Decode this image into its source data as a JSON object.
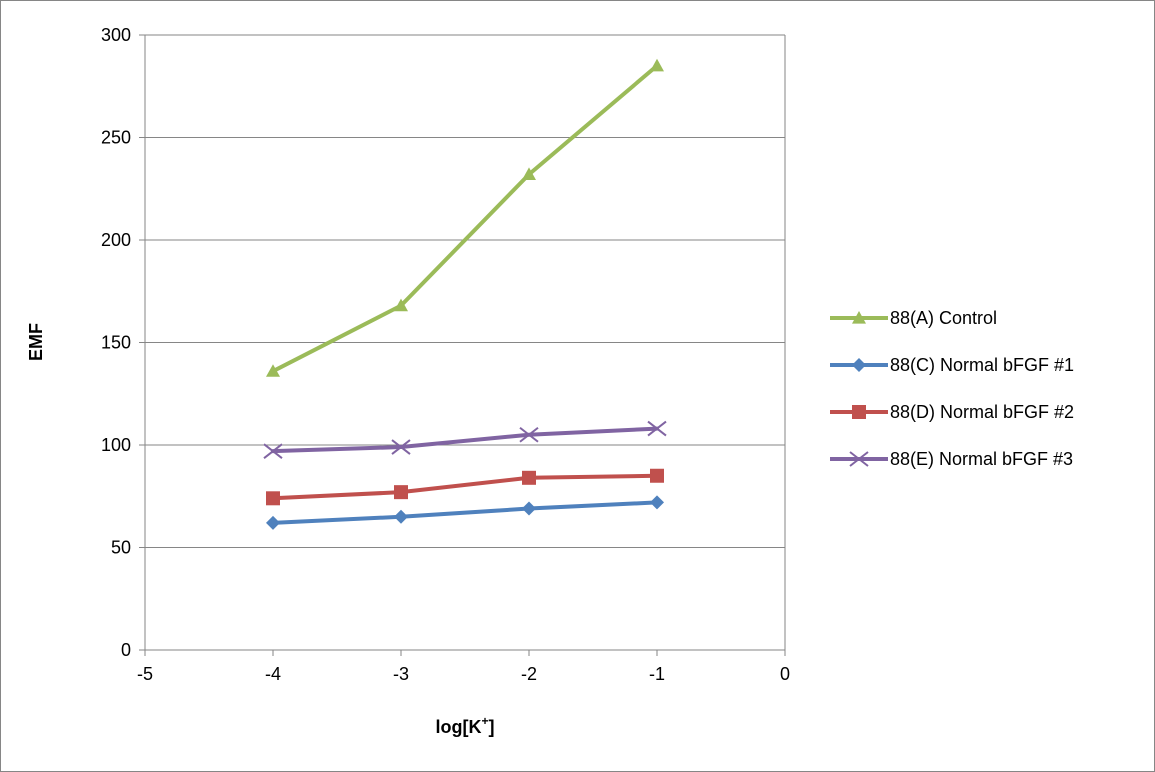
{
  "chart_data": {
    "type": "line",
    "title": "",
    "xlabel": "log[K",
    "xlabel_sup": "+",
    "xlabel_end": "]",
    "ylabel": "EMF",
    "xlim": [
      -5,
      0
    ],
    "ylim": [
      0,
      300
    ],
    "x_ticks": [
      -5,
      -4,
      -3,
      -2,
      -1,
      0
    ],
    "y_ticks": [
      0,
      50,
      100,
      150,
      200,
      250,
      300
    ],
    "grid": "horizontal",
    "legend_position": "right",
    "series": [
      {
        "name": "88(A) Control",
        "color": "#9bbb59",
        "marker": "triangle",
        "x": [
          -4,
          -3,
          -2,
          -1
        ],
        "y": [
          136,
          168,
          232,
          285
        ]
      },
      {
        "name": "88(C) Normal bFGF #1",
        "color": "#4f81bd",
        "marker": "diamond",
        "x": [
          -4,
          -3,
          -2,
          -1
        ],
        "y": [
          62,
          65,
          69,
          72
        ]
      },
      {
        "name": "88(D) Normal bFGF #2",
        "color": "#c0504d",
        "marker": "square",
        "x": [
          -4,
          -3,
          -2,
          -1
        ],
        "y": [
          74,
          77,
          84,
          85
        ]
      },
      {
        "name": "88(E) Normal bFGF #3",
        "color": "#8064a2",
        "marker": "x",
        "x": [
          -4,
          -3,
          -2,
          -1
        ],
        "y": [
          97,
          99,
          105,
          108
        ]
      }
    ]
  }
}
